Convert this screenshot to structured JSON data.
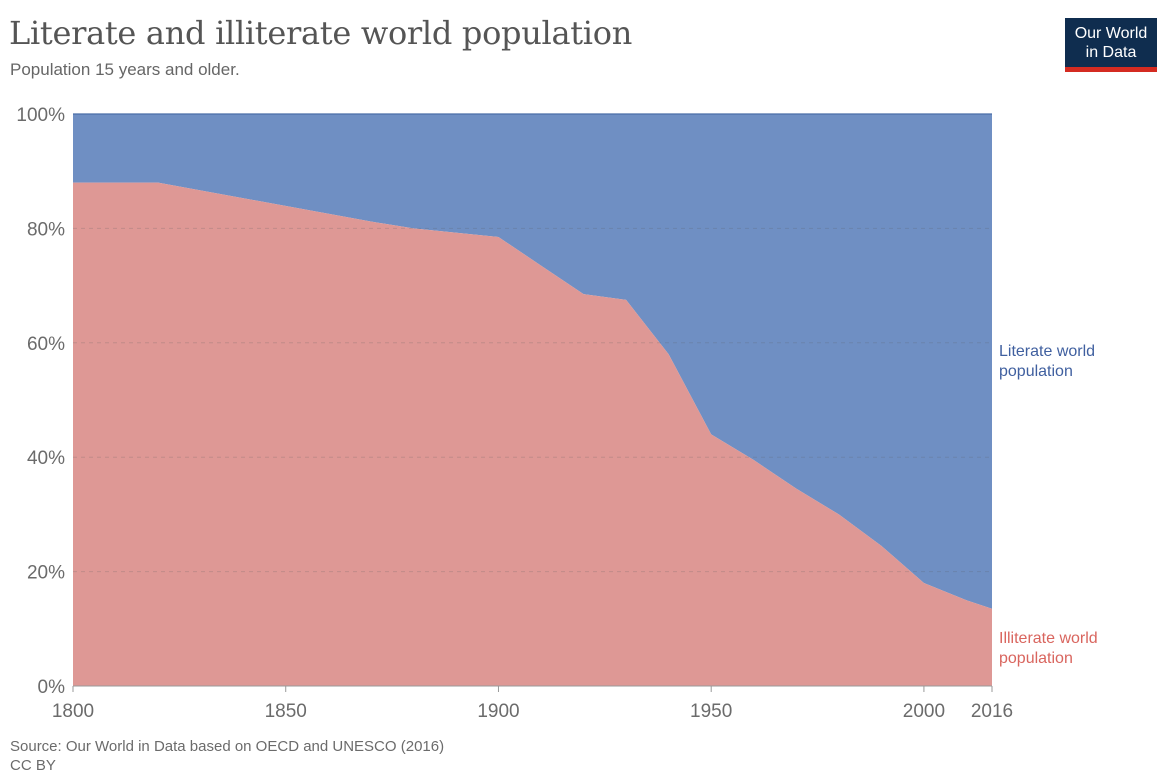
{
  "header": {
    "title": "Literate and illiterate world population",
    "subtitle": "Population 15 years and older."
  },
  "logo": {
    "line1": "Our World",
    "line2": "in Data"
  },
  "footer": {
    "source": "Source: Our World in Data based on OECD and UNESCO (2016)",
    "license": "CC BY"
  },
  "colors": {
    "literate": "#6f8fc3",
    "illiterate": "#de9895",
    "literate_label": "#3f5f9f",
    "illiterate_label": "#d9655e"
  },
  "chart_data": {
    "type": "area",
    "stacked": true,
    "normalized": true,
    "x": [
      1800,
      1820,
      1870,
      1880,
      1900,
      1910,
      1920,
      1930,
      1940,
      1950,
      1960,
      1970,
      1980,
      1990,
      2000,
      2010,
      2016
    ],
    "series": [
      {
        "name": "Illiterate world population",
        "values": [
          88,
          88,
          81.2,
          80,
          78.5,
          73.5,
          68.5,
          67.5,
          58,
          44,
          39.5,
          34.5,
          30,
          24.5,
          18,
          15,
          13.5
        ]
      },
      {
        "name": "Literate world population",
        "values": [
          12,
          12,
          18.8,
          20,
          21.5,
          26.5,
          31.5,
          32.5,
          42,
          56,
          60.5,
          65.5,
          70,
          75.5,
          82,
          85,
          86.5
        ]
      }
    ],
    "xticks": [
      1800,
      1850,
      1900,
      1950,
      2000,
      2016
    ],
    "yticks": [
      "0%",
      "20%",
      "40%",
      "60%",
      "80%",
      "100%"
    ],
    "yticks_values": [
      0,
      20,
      40,
      60,
      80,
      100
    ],
    "xlim": [
      1800,
      2016
    ],
    "ylim": [
      0,
      100
    ],
    "grid": "horizontal-dashed",
    "legend": "right-side labels"
  }
}
